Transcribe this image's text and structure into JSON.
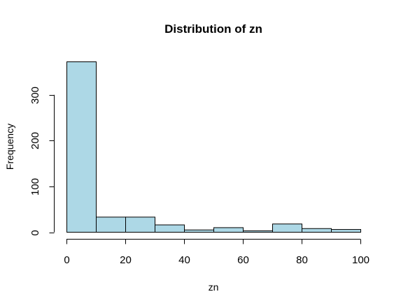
{
  "chart_data": {
    "type": "bar",
    "title": "Distribution of zn",
    "xlabel": "zn",
    "ylabel": "Frequency",
    "bin_edges": [
      0,
      10,
      20,
      30,
      40,
      50,
      60,
      70,
      80,
      90,
      100
    ],
    "values": [
      372,
      33,
      33,
      16,
      5,
      10,
      3,
      18,
      8,
      6
    ],
    "xlim": [
      0,
      100
    ],
    "ylim": [
      0,
      372
    ],
    "x_ticks": [
      0,
      20,
      40,
      60,
      80,
      100
    ],
    "y_ticks": [
      0,
      100,
      200,
      300
    ],
    "bar_color": "#ADD8E6",
    "grid": false
  }
}
